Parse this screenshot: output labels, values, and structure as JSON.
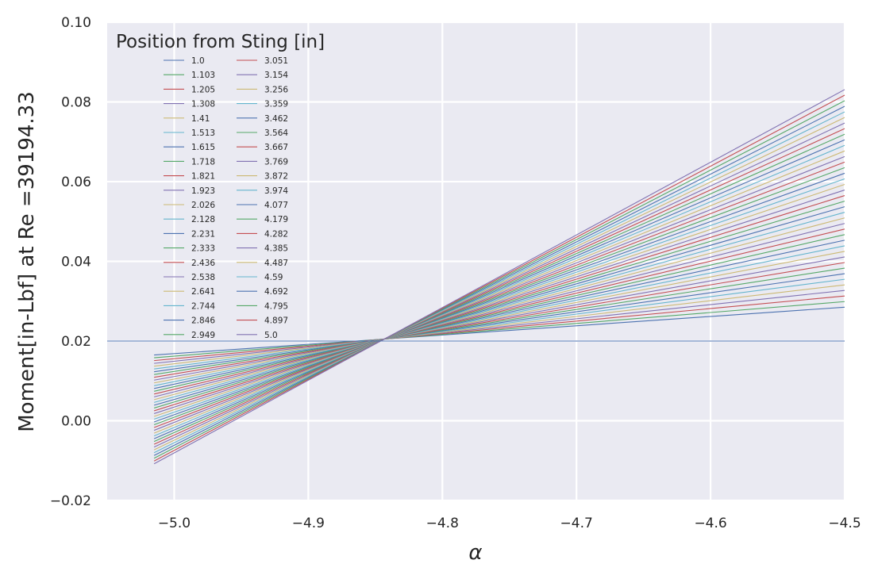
{
  "chart_data": {
    "type": "line",
    "xlabel": "α",
    "ylabel": "Moment[in-Lbf] at Re =39194.33",
    "xlim": [
      -5.05,
      -4.5
    ],
    "ylim": [
      -0.02,
      0.1
    ],
    "x_ticks": [
      "−5.0",
      "−4.9",
      "−4.8",
      "−4.7",
      "−4.6",
      "−4.5"
    ],
    "y_ticks": [
      "−0.02",
      "0.00",
      "0.02",
      "0.04",
      "0.06",
      "0.08",
      "0.10"
    ],
    "x_tick_values": [
      -5.0,
      -4.9,
      -4.8,
      -4.7,
      -4.6,
      -4.5
    ],
    "y_tick_values": [
      -0.02,
      0.0,
      0.02,
      0.04,
      0.06,
      0.08,
      0.1
    ],
    "grid": true,
    "legend": {
      "title": "Position from Sting [in]",
      "location": "top-left",
      "columns": 2
    },
    "reference_line": {
      "y": 0.02,
      "x_start": -5.05,
      "x_end": -4.5,
      "color": "#4c72b0"
    },
    "colors": [
      "#4c72b0",
      "#55a868",
      "#c44e52",
      "#8172b2",
      "#ccb974",
      "#64b5cd"
    ],
    "x_range": [
      -5.015,
      -4.5
    ],
    "series": [
      {
        "name": "1.0",
        "values": [
          0.0165,
          0.0285
        ]
      },
      {
        "name": "1.103",
        "values": [
          0.0158,
          0.0299
        ]
      },
      {
        "name": "1.205",
        "values": [
          0.0151,
          0.0313
        ]
      },
      {
        "name": "1.308",
        "values": [
          0.0144,
          0.0327
        ]
      },
      {
        "name": "1.41",
        "values": [
          0.0137,
          0.0341
        ]
      },
      {
        "name": "1.513",
        "values": [
          0.013,
          0.0355
        ]
      },
      {
        "name": "1.615",
        "values": [
          0.0123,
          0.0369
        ]
      },
      {
        "name": "1.718",
        "values": [
          0.0116,
          0.0383
        ]
      },
      {
        "name": "1.821",
        "values": [
          0.0109,
          0.0397
        ]
      },
      {
        "name": "1.923",
        "values": [
          0.0102,
          0.0411
        ]
      },
      {
        "name": "2.026",
        "values": [
          0.0095,
          0.0425
        ]
      },
      {
        "name": "2.128",
        "values": [
          0.0088,
          0.0439
        ]
      },
      {
        "name": "2.231",
        "values": [
          0.0081,
          0.0453
        ]
      },
      {
        "name": "2.333",
        "values": [
          0.0074,
          0.0467
        ]
      },
      {
        "name": "2.436",
        "values": [
          0.0067,
          0.0481
        ]
      },
      {
        "name": "2.538",
        "values": [
          0.006,
          0.0495
        ]
      },
      {
        "name": "2.641",
        "values": [
          0.0053,
          0.0509
        ]
      },
      {
        "name": "2.744",
        "values": [
          0.0046,
          0.0523
        ]
      },
      {
        "name": "2.846",
        "values": [
          0.0039,
          0.0537
        ]
      },
      {
        "name": "2.949",
        "values": [
          0.0032,
          0.0551
        ]
      },
      {
        "name": "3.051",
        "values": [
          0.0025,
          0.0565
        ]
      },
      {
        "name": "3.154",
        "values": [
          0.0018,
          0.0579
        ]
      },
      {
        "name": "3.256",
        "values": [
          0.0011,
          0.0593
        ]
      },
      {
        "name": "3.359",
        "values": [
          0.0004,
          0.0607
        ]
      },
      {
        "name": "3.462",
        "values": [
          -0.0003,
          0.0621
        ]
      },
      {
        "name": "3.564",
        "values": [
          -0.001,
          0.0635
        ]
      },
      {
        "name": "3.667",
        "values": [
          -0.0017,
          0.0649
        ]
      },
      {
        "name": "3.769",
        "values": [
          -0.0024,
          0.0663
        ]
      },
      {
        "name": "3.872",
        "values": [
          -0.0031,
          0.0677
        ]
      },
      {
        "name": "3.974",
        "values": [
          -0.0038,
          0.0691
        ]
      },
      {
        "name": "4.077",
        "values": [
          -0.0045,
          0.0705
        ]
      },
      {
        "name": "4.179",
        "values": [
          -0.0052,
          0.0719
        ]
      },
      {
        "name": "4.282",
        "values": [
          -0.0059,
          0.0733
        ]
      },
      {
        "name": "4.385",
        "values": [
          -0.0066,
          0.0747
        ]
      },
      {
        "name": "4.487",
        "values": [
          -0.0073,
          0.0761
        ]
      },
      {
        "name": "4.59",
        "values": [
          -0.008,
          0.0775
        ]
      },
      {
        "name": "4.692",
        "values": [
          -0.0087,
          0.0789
        ]
      },
      {
        "name": "4.795",
        "values": [
          -0.0094,
          0.0803
        ]
      },
      {
        "name": "4.897",
        "values": [
          -0.0101,
          0.0817
        ]
      },
      {
        "name": "5.0",
        "values": [
          -0.0108,
          0.0831
        ]
      }
    ]
  }
}
